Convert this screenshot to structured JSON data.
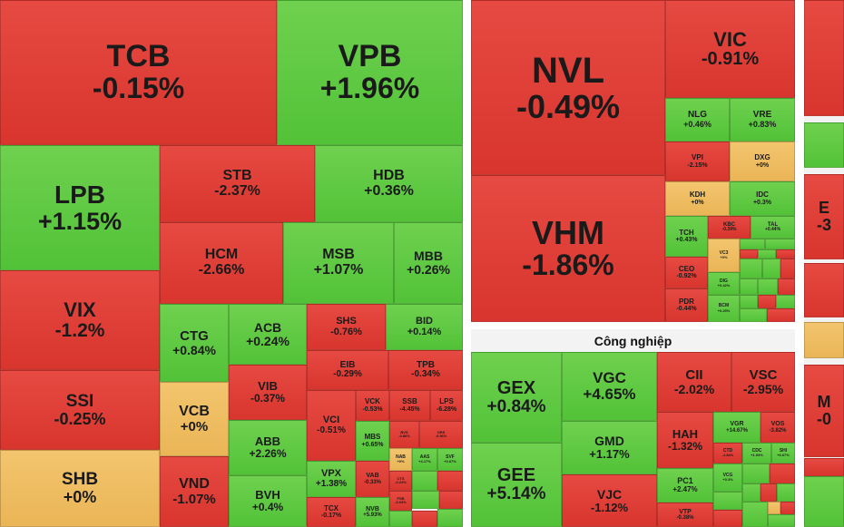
{
  "colors": {
    "up": "#5ac63c",
    "down": "#e03e37",
    "flat": "#eebb5e"
  },
  "sectors": {
    "industrial_title": "Công nghiệp"
  },
  "tiles": [
    {
      "t": "TCB",
      "c": "-0.15%",
      "s": "down"
    },
    {
      "t": "VPB",
      "c": "+1.96%",
      "s": "up"
    },
    {
      "t": "LPB",
      "c": "+1.15%",
      "s": "up"
    },
    {
      "t": "STB",
      "c": "-2.37%",
      "s": "down"
    },
    {
      "t": "HDB",
      "c": "+0.36%",
      "s": "up"
    },
    {
      "t": "HCM",
      "c": "-2.66%",
      "s": "down"
    },
    {
      "t": "MSB",
      "c": "+1.07%",
      "s": "up"
    },
    {
      "t": "MBB",
      "c": "+0.26%",
      "s": "up"
    },
    {
      "t": "VIX",
      "c": "-1.2%",
      "s": "down"
    },
    {
      "t": "SSI",
      "c": "-0.25%",
      "s": "down"
    },
    {
      "t": "SHB",
      "c": "+0%",
      "s": "flat"
    },
    {
      "t": "CTG",
      "c": "+0.84%",
      "s": "up"
    },
    {
      "t": "ACB",
      "c": "+0.24%",
      "s": "up"
    },
    {
      "t": "SHS",
      "c": "-0.76%",
      "s": "down"
    },
    {
      "t": "BID",
      "c": "+0.14%",
      "s": "up"
    },
    {
      "t": "EIB",
      "c": "-0.29%",
      "s": "down"
    },
    {
      "t": "TPB",
      "c": "-0.34%",
      "s": "down"
    },
    {
      "t": "VIB",
      "c": "-0.37%",
      "s": "down"
    },
    {
      "t": "VCB",
      "c": "+0%",
      "s": "flat"
    },
    {
      "t": "ABB",
      "c": "+2.26%",
      "s": "up"
    },
    {
      "t": "VND",
      "c": "-1.07%",
      "s": "down"
    },
    {
      "t": "BVH",
      "c": "+0.4%",
      "s": "up"
    },
    {
      "t": "VCI",
      "c": "-0.51%",
      "s": "down"
    },
    {
      "t": "VCK",
      "c": "-0.53%",
      "s": "down"
    },
    {
      "t": "SSB",
      "c": "-4.45%",
      "s": "down"
    },
    {
      "t": "LPS",
      "c": "-6.28%",
      "s": "down"
    },
    {
      "t": "MBS",
      "c": "+0.65%",
      "s": "up"
    },
    {
      "t": "BVS",
      "c": "-0.86%",
      "s": "down"
    },
    {
      "t": "ORS",
      "c": "-0.56%",
      "s": "down"
    },
    {
      "t": "NAB",
      "c": "+0%",
      "s": "flat"
    },
    {
      "t": "AAS",
      "c": "+4.17%",
      "s": "up"
    },
    {
      "t": "SVF",
      "c": "+0.67%",
      "s": "up"
    },
    {
      "t": "VPX",
      "c": "+1.38%",
      "s": "up"
    },
    {
      "t": "VAB",
      "c": "-0.33%",
      "s": "down"
    },
    {
      "t": "CTS",
      "c": "-0.24%",
      "s": "down"
    },
    {
      "t": "FSB",
      "c": "-0.04%",
      "s": "down"
    },
    {
      "t": "TCX",
      "c": "-0.17%",
      "s": "down"
    },
    {
      "t": "NVB",
      "c": "+5.93%",
      "s": "up"
    },
    {
      "t": "NVL",
      "c": "-0.49%",
      "s": "down"
    },
    {
      "t": "VHM",
      "c": "-1.86%",
      "s": "down"
    },
    {
      "t": "VIC",
      "c": "-0.91%",
      "s": "down"
    },
    {
      "t": "NLG",
      "c": "+0.46%",
      "s": "up"
    },
    {
      "t": "VRE",
      "c": "+0.83%",
      "s": "up"
    },
    {
      "t": "VPI",
      "c": "-2.15%",
      "s": "down"
    },
    {
      "t": "DXG",
      "c": "+0%",
      "s": "flat"
    },
    {
      "t": "KDH",
      "c": "+0%",
      "s": "flat"
    },
    {
      "t": "IDC",
      "c": "+0.3%",
      "s": "up"
    },
    {
      "t": "TCH",
      "c": "+0.43%",
      "s": "up"
    },
    {
      "t": "KBC",
      "c": "-0.39%",
      "s": "down"
    },
    {
      "t": "TAL",
      "c": "+0.44%",
      "s": "up"
    },
    {
      "t": "VC3",
      "c": "+0%",
      "s": "flat"
    },
    {
      "t": "CEO",
      "c": "-0.92%",
      "s": "down"
    },
    {
      "t": "DIG",
      "c": "+0.42%",
      "s": "up"
    },
    {
      "t": "PDR",
      "c": "-0.44%",
      "s": "down"
    },
    {
      "t": "BCM",
      "c": "+0.25%",
      "s": "up"
    },
    {
      "t": "GEX",
      "c": "+0.84%",
      "s": "up"
    },
    {
      "t": "VGC",
      "c": "+4.65%",
      "s": "up"
    },
    {
      "t": "CII",
      "c": "-2.02%",
      "s": "down"
    },
    {
      "t": "VSC",
      "c": "-2.95%",
      "s": "down"
    },
    {
      "t": "GMD",
      "c": "+1.17%",
      "s": "up"
    },
    {
      "t": "HAH",
      "c": "-1.32%",
      "s": "down"
    },
    {
      "t": "VGR",
      "c": "+14.67%",
      "s": "up"
    },
    {
      "t": "VOS",
      "c": "-3.82%",
      "s": "down"
    },
    {
      "t": "CTD",
      "c": "-1.84%",
      "s": "down"
    },
    {
      "t": "CDC",
      "c": "+1.93%",
      "s": "up"
    },
    {
      "t": "SHI",
      "c": "+6.67%",
      "s": "up"
    },
    {
      "t": "GEE",
      "c": "+5.14%",
      "s": "up"
    },
    {
      "t": "VJC",
      "c": "-1.12%",
      "s": "down"
    },
    {
      "t": "PC1",
      "c": "+2.47%",
      "s": "up"
    },
    {
      "t": "VTP",
      "c": "-0.38%",
      "s": "down"
    },
    {
      "t": "VCG",
      "c": "+0.3%",
      "s": "up"
    },
    {
      "t": "E",
      "c": "-3",
      "s": "down"
    },
    {
      "t": "M",
      "c": "-0",
      "s": "down"
    }
  ]
}
